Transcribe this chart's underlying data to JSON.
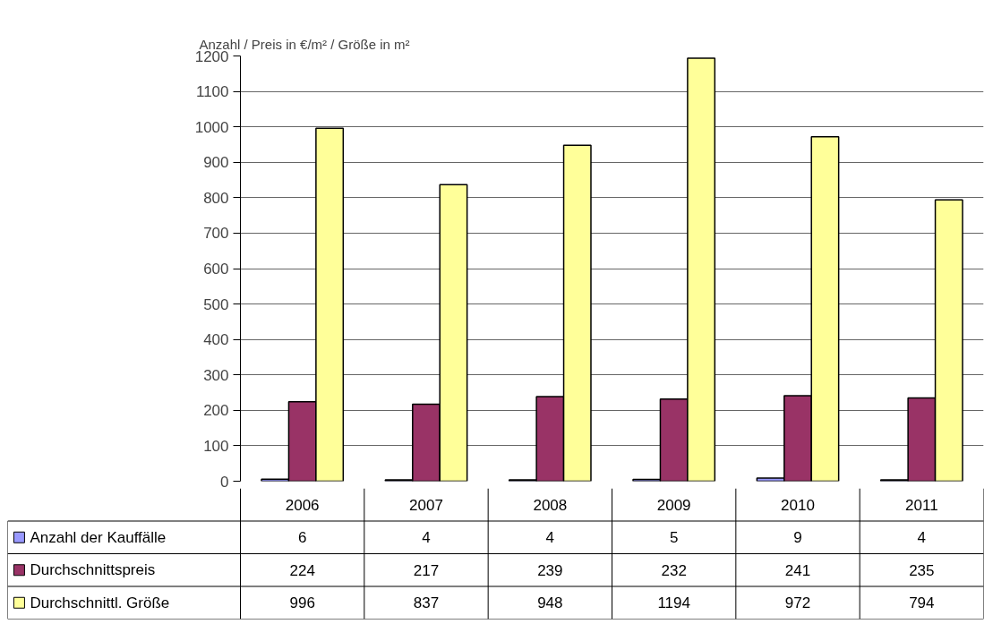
{
  "chart_data": {
    "type": "bar",
    "ylabel": "Anzahl / Preis in €/m² / Größe in m²",
    "categories": [
      "2006",
      "2007",
      "2008",
      "2009",
      "2010",
      "2011"
    ],
    "series": [
      {
        "name": "Anzahl der Kauffälle",
        "color": "#9999ff",
        "values": [
          6,
          4,
          4,
          5,
          9,
          4
        ]
      },
      {
        "name": "Durchschnittspreis",
        "color": "#993366",
        "values": [
          224,
          217,
          239,
          232,
          241,
          235
        ]
      },
      {
        "name": "Durchschnittl. Größe",
        "color": "#ffff99",
        "values": [
          996,
          837,
          948,
          1194,
          972,
          794
        ]
      }
    ],
    "ylim": [
      0,
      1200
    ],
    "yticks": [
      0,
      100,
      200,
      300,
      400,
      500,
      600,
      700,
      800,
      900,
      1000,
      1100,
      1200
    ],
    "grid": "y",
    "legend": "bottom",
    "data_labels": true
  }
}
